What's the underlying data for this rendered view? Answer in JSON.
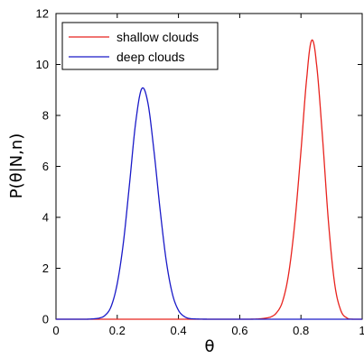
{
  "chart_data": {
    "type": "line",
    "title": "",
    "xlabel": "θ",
    "ylabel": "P(θ|N,n)",
    "xlim": [
      0,
      1
    ],
    "ylim": [
      0,
      12
    ],
    "xticks": [
      0,
      0.2,
      0.4,
      0.6,
      0.8,
      1
    ],
    "xtick_labels": [
      "0",
      "0.2",
      "0.4",
      "0.6",
      "0.8",
      "1"
    ],
    "yticks": [
      0,
      2,
      4,
      6,
      8,
      10,
      12
    ],
    "ytick_labels": [
      "0",
      "2",
      "4",
      "6",
      "8",
      "10",
      "12"
    ],
    "grid": false,
    "legend_position": "top-left",
    "series": [
      {
        "name": "shallow clouds",
        "color": "#e8231e",
        "peak_x": 0.835,
        "peak_y": 10.95,
        "x": [
          0,
          0.6,
          0.66,
          0.7,
          0.72,
          0.74,
          0.76,
          0.78,
          0.8,
          0.82,
          0.835,
          0.85,
          0.87,
          0.89,
          0.91,
          0.93,
          0.95,
          0.97,
          1.0
        ],
        "values": [
          0,
          0,
          0.01,
          0.08,
          0.25,
          0.7,
          1.8,
          3.8,
          6.6,
          9.6,
          10.95,
          10.1,
          7.2,
          3.8,
          1.4,
          0.35,
          0.05,
          0.0,
          0
        ]
      },
      {
        "name": "deep clouds",
        "color": "#1a1ac8",
        "peak_x": 0.28,
        "peak_y": 9.05,
        "x": [
          0,
          0.1,
          0.14,
          0.16,
          0.18,
          0.2,
          0.22,
          0.24,
          0.26,
          0.28,
          0.3,
          0.32,
          0.34,
          0.36,
          0.38,
          0.4,
          0.42,
          0.44,
          0.5,
          1.0
        ],
        "values": [
          0,
          0,
          0.04,
          0.15,
          0.5,
          1.4,
          3.0,
          5.3,
          7.7,
          9.05,
          8.5,
          6.6,
          4.3,
          2.3,
          1.0,
          0.35,
          0.1,
          0.02,
          0,
          0
        ]
      }
    ]
  }
}
